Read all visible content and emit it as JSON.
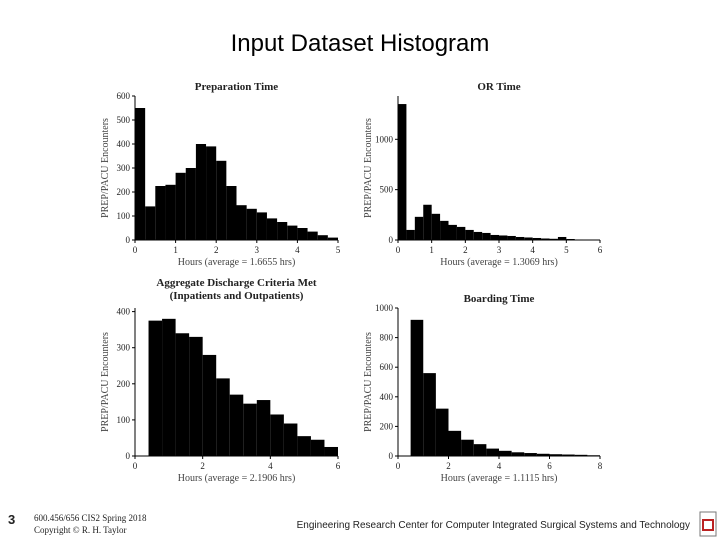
{
  "title": "Input Dataset Histogram",
  "footer": {
    "page_number": "3",
    "course": "600.456/656 CIS2 Spring 2018",
    "copyright": "Copyright © R. H. Taylor",
    "center": "Engineering Research Center for Computer Integrated Surgical Systems and Technology"
  },
  "chart_data": [
    {
      "type": "histogram",
      "title": "Preparation Time",
      "x_label": "Hours (average = 1.6655 hrs)",
      "y_label": "PREP/PACU Encounters",
      "color": "#000000",
      "bins": [
        0,
        0.25,
        0.5,
        0.75,
        1,
        1.25,
        1.5,
        1.75,
        2,
        2.25,
        2.5,
        2.75,
        3,
        3.25,
        3.5,
        3.75,
        4,
        4.25,
        4.5,
        4.75,
        5
      ],
      "values": [
        550,
        140,
        225,
        230,
        280,
        300,
        400,
        390,
        330,
        225,
        145,
        130,
        115,
        90,
        75,
        60,
        50,
        35,
        20,
        10
      ],
      "xlim": [
        0,
        5
      ],
      "ylim": [
        0,
        600
      ],
      "xticks": [
        0,
        1,
        2,
        3,
        4,
        5
      ],
      "yticks": [
        0,
        100,
        200,
        300,
        400,
        500,
        600
      ]
    },
    {
      "type": "histogram",
      "title": "OR Time",
      "x_label": "Hours (average = 1.3069 hrs)",
      "y_label": "PREP/PACU Encounters",
      "color": "#000000",
      "bins": [
        0,
        0.25,
        0.5,
        0.75,
        1,
        1.25,
        1.5,
        1.75,
        2,
        2.25,
        2.5,
        2.75,
        3,
        3.25,
        3.5,
        3.75,
        4,
        4.25,
        4.5,
        4.75,
        5,
        5.25,
        5.5,
        5.75,
        6
      ],
      "values": [
        1350,
        100,
        230,
        350,
        260,
        190,
        150,
        130,
        100,
        80,
        70,
        50,
        45,
        40,
        30,
        25,
        20,
        15,
        12,
        30,
        10,
        5,
        3,
        2
      ],
      "xlim": [
        0,
        6
      ],
      "ylim": [
        0,
        1430
      ],
      "xticks": [
        0,
        1,
        2,
        3,
        4,
        5,
        6
      ],
      "yticks": [
        0,
        500,
        1000
      ]
    },
    {
      "type": "histogram",
      "title": "Aggregate Discharge Criteria Met",
      "subtitle": "(Inpatients and Outpatients)",
      "x_label": "Hours (average = 2.1906 hrs)",
      "y_label": "PREP/PACU Encounters",
      "color": "#000000",
      "bins": [
        0.4,
        0.8,
        1.2,
        1.6,
        2,
        2.4,
        2.8,
        3.2,
        3.6,
        4,
        4.4,
        4.8,
        5.2,
        5.6,
        6
      ],
      "values": [
        375,
        380,
        340,
        330,
        280,
        215,
        170,
        145,
        155,
        115,
        90,
        55,
        45,
        25
      ],
      "xlim": [
        0,
        6
      ],
      "ylim": [
        0,
        410
      ],
      "xticks": [
        0,
        2,
        4,
        6
      ],
      "yticks": [
        0,
        100,
        200,
        300,
        400
      ]
    },
    {
      "type": "histogram",
      "title": "Boarding Time",
      "x_label": "Hours (average = 1.1115 hrs)",
      "y_label": "PREP/PACU Encounters",
      "color": "#000000",
      "bins": [
        0.5,
        1,
        1.5,
        2,
        2.5,
        3,
        3.5,
        4,
        4.5,
        5,
        5.5,
        6,
        6.5,
        7,
        7.5,
        8
      ],
      "values": [
        920,
        560,
        320,
        170,
        110,
        80,
        50,
        35,
        25,
        20,
        15,
        12,
        10,
        8,
        5
      ],
      "xlim": [
        0,
        8
      ],
      "ylim": [
        0,
        1000
      ],
      "xticks": [
        0,
        2,
        4,
        6,
        8
      ],
      "yticks": [
        0,
        200,
        400,
        600,
        800,
        1000
      ]
    }
  ]
}
